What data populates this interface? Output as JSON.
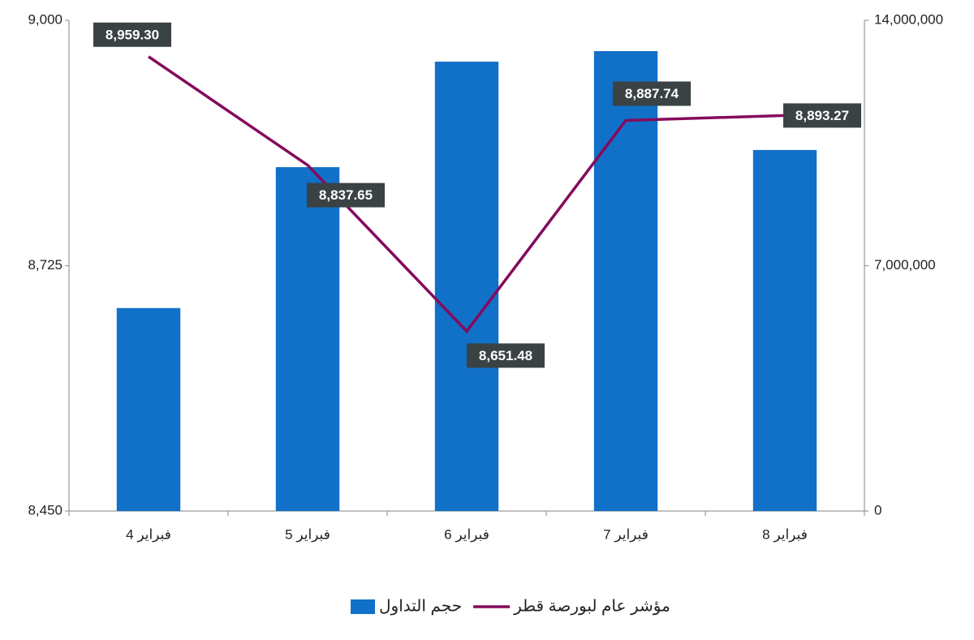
{
  "chart_data": {
    "type": "bar",
    "categories": [
      "4 فبراير",
      "5 فبراير",
      "6 فبراير",
      "7 فبراير",
      "8 فبراير"
    ],
    "series": [
      {
        "name": "حجم التداول",
        "type": "bar",
        "axis": "y2",
        "color": "#1170c8",
        "values": [
          5790000,
          9810000,
          12820000,
          13120000,
          10300000
        ]
      },
      {
        "name": "مؤشر عام لبورصة قطر",
        "type": "line",
        "axis": "y",
        "color": "#850a5c",
        "values": [
          8959.3,
          8837.65,
          8651.48,
          8887.74,
          8893.27
        ],
        "value_labels": [
          "8,959.30",
          "8,837.65",
          "8,651.48",
          "8,887.74",
          "8,893.27"
        ]
      }
    ],
    "ylim": [
      8450,
      9000
    ],
    "yticks": [
      {
        "value": 8450,
        "label": "8,450"
      },
      {
        "value": 8725,
        "label": "8,725"
      },
      {
        "value": 9000,
        "label": "9,000"
      }
    ],
    "y2lim": [
      0,
      14000000
    ],
    "y2ticks": [
      0,
      {
        "value": 7000000,
        "label": "7,000,000"
      },
      {
        "value": 14000000,
        "label": "14,000,000"
      }
    ],
    "grid": false,
    "legend": "bottom"
  }
}
